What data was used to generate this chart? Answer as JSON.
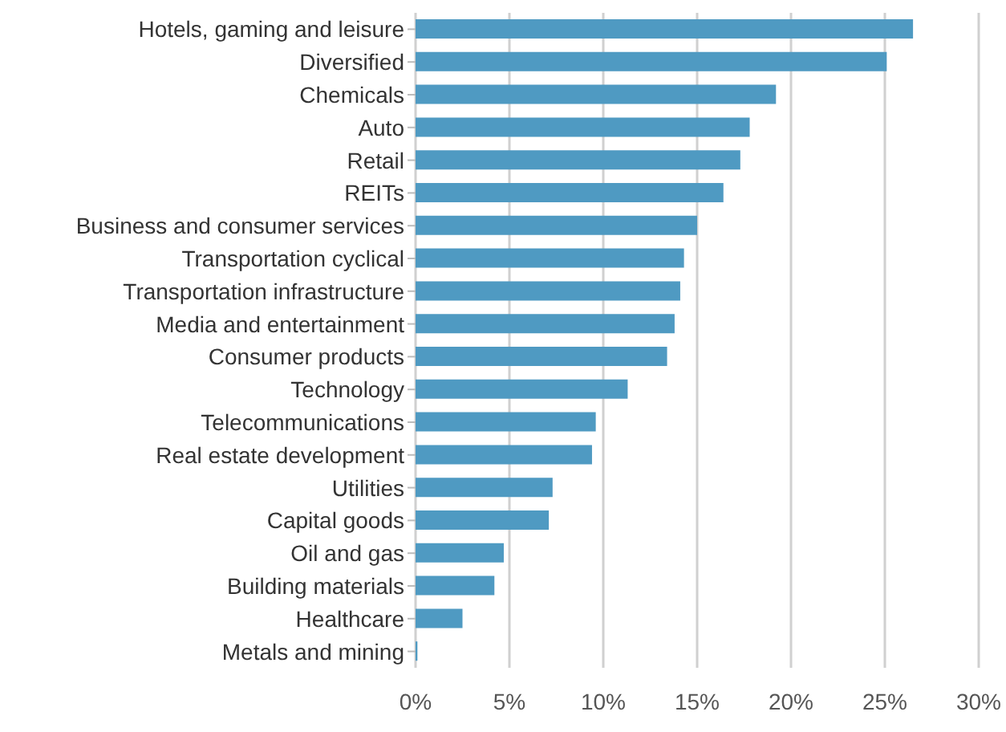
{
  "chart_data": {
    "type": "bar",
    "orientation": "horizontal",
    "categories": [
      "Hotels, gaming and leisure",
      "Diversified",
      "Chemicals",
      "Auto",
      "Retail",
      "REITs",
      "Business and consumer services",
      "Transportation cyclical",
      "Transportation infrastructure",
      "Media and entertainment",
      "Consumer products",
      "Technology",
      "Telecommunications",
      "Real estate development",
      "Utilities",
      "Capital goods",
      "Oil and gas",
      "Building materials",
      "Healthcare",
      "Metals and mining"
    ],
    "values": [
      26.5,
      25.1,
      19.2,
      17.8,
      17.3,
      16.4,
      15.0,
      14.3,
      14.1,
      13.8,
      13.4,
      11.3,
      9.6,
      9.4,
      7.3,
      7.1,
      4.7,
      4.2,
      2.5,
      0.1
    ],
    "color": "#4f9ac2",
    "xlim": [
      0,
      30
    ],
    "xticks": [
      {
        "value": 0,
        "label": "0%"
      },
      {
        "value": 5,
        "label": "5%"
      },
      {
        "value": 10,
        "label": "10%"
      },
      {
        "value": 15,
        "label": "15%"
      },
      {
        "value": 20,
        "label": "20%"
      },
      {
        "value": 25,
        "label": "25%"
      },
      {
        "value": 30,
        "label": "30%"
      }
    ],
    "grid": "x"
  }
}
